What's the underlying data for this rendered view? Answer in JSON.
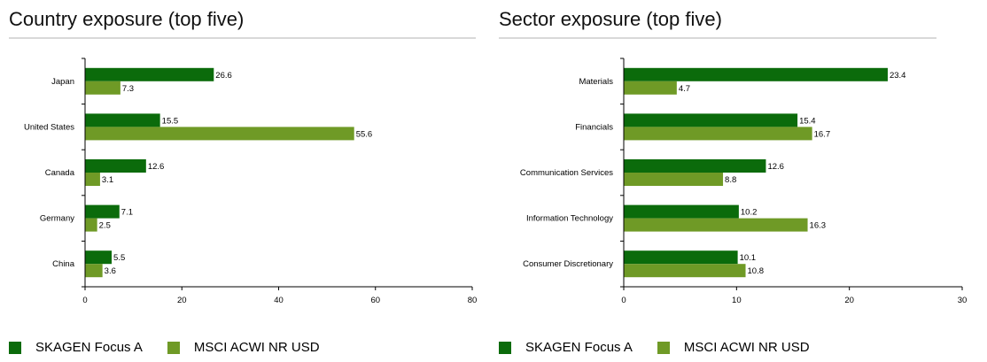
{
  "colors": {
    "series_a": "#0b6b0b",
    "series_b": "#6f9a26",
    "axis": "#000000",
    "rule": "#d9d9d9"
  },
  "chart_data": [
    {
      "type": "bar",
      "orientation": "horizontal",
      "title": "Country exposure (top five)",
      "categories": [
        "Japan",
        "United States",
        "Canada",
        "Germany",
        "China"
      ],
      "series": [
        {
          "name": "SKAGEN Focus A",
          "values": [
            26.6,
            15.5,
            12.6,
            7.1,
            5.5
          ]
        },
        {
          "name": "MSCI ACWI NR USD",
          "values": [
            7.3,
            55.6,
            3.1,
            2.5,
            3.6
          ]
        }
      ],
      "xlim": [
        0,
        80
      ],
      "xticks": [
        0,
        20,
        40,
        60,
        80
      ],
      "grid": false,
      "legend_position": "bottom-left"
    },
    {
      "type": "bar",
      "orientation": "horizontal",
      "title": "Sector exposure (top five)",
      "categories": [
        "Materials",
        "Financials",
        "Communication Services",
        "Information Technology",
        "Consumer Discretionary"
      ],
      "series": [
        {
          "name": "SKAGEN Focus A",
          "values": [
            23.4,
            15.4,
            12.6,
            10.2,
            10.1
          ]
        },
        {
          "name": "MSCI ACWI NR USD",
          "values": [
            4.7,
            16.7,
            8.8,
            16.3,
            10.8
          ]
        }
      ],
      "xlim": [
        0,
        30
      ],
      "xticks": [
        0,
        10,
        20,
        30
      ],
      "grid": false,
      "legend_position": "bottom-left"
    }
  ]
}
